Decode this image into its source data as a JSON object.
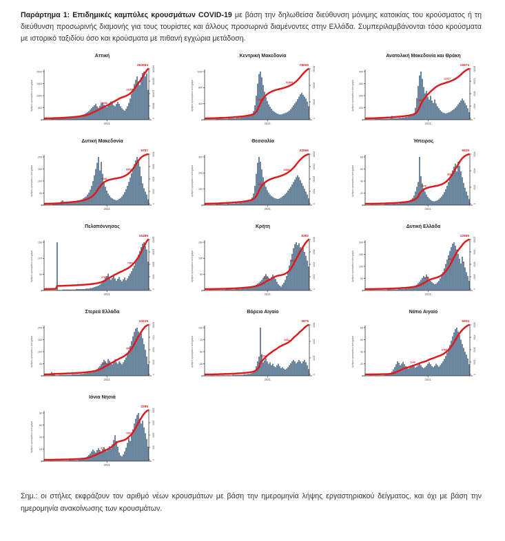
{
  "header": {
    "lead": "Παράρτημα 1:  Επιδημικές καμπύλες κρουσμάτων COVID-19",
    "rest": " με βάση την δηλωθείσα διεύθυνση μόνιμης κατοικίας του κρούσματος ή τη διεύθυνση προσωρινής διαμονής για τους τουρίστες και άλλους προσωρινά διαμένοντες στην Ελλάδα. Συμπεριλαμβάνονται τόσο κρούσματα με ιστορικό ταξιδίου όσο και κρούσματα με πιθανή εγχώρια μετάδοση."
  },
  "note": {
    "lead": "Σημ.:",
    "rest": " οι στήλες εκφράζουν τον αριθμό νέων κρουσμάτων με βάση την ημερομηνία λήψης εργαστηριακού δείγματος, και όχι με βάση την ημερομηνία ανακοίνωσης των κρουσμάτων."
  },
  "axis": {
    "ylabel": "Αριθμός κρουσμάτων ανά ημέρα",
    "x_tick": "2021"
  },
  "colors": {
    "bar": "#4d6d8b",
    "line": "#dd1a1c",
    "axis": "#333333",
    "tick_text": "#555555"
  },
  "chart_data": [
    {
      "type": "bar+cumulative-line",
      "title": "Αττική",
      "total": "263084",
      "left_ticks": [
        "0",
        "500",
        "1000",
        "1500",
        "2000"
      ],
      "right_ticks": [
        "0",
        "60000",
        "120000",
        "180000",
        "240000"
      ],
      "milestones": [
        0.56,
        0.82
      ],
      "bars": [
        1,
        1,
        1,
        1,
        1,
        2,
        2,
        2,
        2,
        2,
        2,
        3,
        3,
        3,
        3,
        3,
        4,
        4,
        4,
        5,
        5,
        5,
        6,
        6,
        7,
        8,
        9,
        10,
        11,
        12,
        14,
        16,
        18,
        21,
        24,
        27,
        30,
        33,
        28,
        25,
        29,
        33,
        36,
        31,
        28,
        26,
        30,
        35,
        38,
        34,
        30,
        28,
        33,
        37,
        33,
        28,
        24,
        21,
        19,
        23,
        28,
        35,
        44,
        54,
        64,
        74,
        83,
        90,
        80,
        72,
        88,
        97,
        100,
        90,
        96,
        62
      ]
    },
    {
      "type": "bar+cumulative-line",
      "title": "Κεντρική Μακεδονία",
      "total": "78655",
      "left_ticks": [
        "0",
        "400",
        "800",
        "1200"
      ],
      "right_ticks": [
        "0",
        "20000",
        "40000",
        "60000"
      ],
      "milestones": [
        0.53,
        0.8
      ],
      "bars": [
        1,
        1,
        1,
        1,
        1,
        1,
        1,
        1,
        2,
        2,
        2,
        2,
        2,
        2,
        2,
        2,
        2,
        3,
        3,
        3,
        3,
        3,
        3,
        4,
        4,
        4,
        5,
        5,
        6,
        6,
        7,
        8,
        9,
        10,
        12,
        18,
        30,
        50,
        75,
        95,
        100,
        88,
        72,
        58,
        47,
        39,
        32,
        27,
        23,
        19,
        17,
        15,
        13,
        12,
        11,
        11,
        12,
        13,
        14,
        15,
        17,
        19,
        22,
        26,
        30,
        34,
        38,
        43,
        48,
        53,
        56,
        52,
        48,
        44,
        38,
        28
      ]
    },
    {
      "type": "bar+cumulative-line",
      "title": "Ανατολική Μακεδονία και Θράκη",
      "total": "16973",
      "left_ticks": [
        "0",
        "100",
        "200",
        "300",
        "400"
      ],
      "right_ticks": [
        "0",
        "4000",
        "8000",
        "12000",
        "16000"
      ],
      "milestones": [
        0.53,
        0.78
      ],
      "bars": [
        1,
        1,
        1,
        1,
        1,
        1,
        1,
        2,
        2,
        2,
        2,
        2,
        2,
        2,
        2,
        2,
        2,
        2,
        3,
        8,
        3,
        3,
        3,
        3,
        4,
        4,
        4,
        5,
        5,
        6,
        6,
        7,
        8,
        9,
        10,
        14,
        25,
        45,
        70,
        92,
        100,
        85,
        68,
        55,
        60,
        48,
        42,
        50,
        40,
        35,
        42,
        34,
        28,
        24,
        20,
        17,
        15,
        14,
        13,
        14,
        15,
        16,
        18,
        20,
        22,
        25,
        28,
        32,
        36,
        40,
        44,
        40,
        35,
        30,
        24,
        16
      ]
    },
    {
      "type": "bar+cumulative-line",
      "title": "Δυτική Μακεδονία",
      "total": "9757",
      "left_ticks": [
        "0",
        "50",
        "100",
        "150",
        "200"
      ],
      "right_ticks": [
        "0",
        "2000",
        "4000",
        "6000",
        "8000"
      ],
      "milestones": [
        0.56,
        0.8
      ],
      "bars": [
        1,
        1,
        1,
        1,
        1,
        1,
        2,
        2,
        2,
        3,
        3,
        4,
        8,
        10,
        6,
        4,
        4,
        5,
        5,
        6,
        6,
        7,
        7,
        8,
        9,
        10,
        11,
        12,
        14,
        16,
        18,
        22,
        26,
        32,
        40,
        50,
        62,
        75,
        88,
        100,
        72,
        90,
        65,
        48,
        38,
        30,
        24,
        20,
        16,
        14,
        12,
        11,
        10,
        11,
        13,
        15,
        18,
        22,
        27,
        33,
        40,
        48,
        57,
        66,
        76,
        85,
        93,
        100,
        92,
        80,
        60,
        45,
        35,
        28,
        22,
        12
      ]
    },
    {
      "type": "bar+cumulative-line",
      "title": "Θεσσαλία",
      "total": "22566",
      "left_ticks": [
        "0",
        "100",
        "200",
        "300"
      ],
      "right_ticks": [
        "0",
        "5000",
        "10000",
        "15000",
        "20000"
      ],
      "milestones": [
        0.52,
        0.78
      ],
      "bars": [
        1,
        1,
        1,
        1,
        1,
        1,
        1,
        1,
        2,
        2,
        2,
        4,
        2,
        2,
        2,
        2,
        3,
        3,
        3,
        3,
        3,
        3,
        4,
        4,
        4,
        5,
        5,
        5,
        6,
        7,
        8,
        9,
        10,
        12,
        16,
        24,
        40,
        65,
        88,
        100,
        90,
        74,
        58,
        46,
        38,
        31,
        26,
        22,
        19,
        17,
        15,
        14,
        13,
        13,
        14,
        16,
        18,
        20,
        23,
        26,
        30,
        34,
        38,
        43,
        48,
        53,
        58,
        62,
        58,
        52,
        46,
        40,
        34,
        28,
        22,
        14
      ]
    },
    {
      "type": "bar+cumulative-line",
      "title": "Ήπειρος",
      "total": "6929",
      "left_ticks": [
        "0",
        "20",
        "40",
        "60",
        "80"
      ],
      "right_ticks": [
        "0",
        "2000",
        "4000",
        "6000"
      ],
      "milestones": [
        0.55,
        0.8
      ],
      "bars": [
        0,
        0,
        0,
        0,
        1,
        1,
        1,
        1,
        1,
        1,
        1,
        1,
        1,
        1,
        2,
        2,
        2,
        2,
        2,
        2,
        3,
        3,
        3,
        3,
        3,
        4,
        4,
        5,
        5,
        6,
        7,
        8,
        10,
        12,
        15,
        20,
        28,
        38,
        48,
        100,
        60,
        45,
        35,
        28,
        22,
        17,
        14,
        11,
        9,
        8,
        8,
        9,
        10,
        12,
        15,
        18,
        22,
        27,
        33,
        40,
        48,
        56,
        64,
        72,
        80,
        86,
        70,
        90,
        82,
        70,
        58,
        46,
        36,
        28,
        20,
        12
      ]
    },
    {
      "type": "bar+cumulative-line",
      "title": "Πελοπόννησος",
      "total": "16489",
      "left_ticks": [
        "0",
        "50",
        "100",
        "150"
      ],
      "right_ticks": [
        "0",
        "4000",
        "8000",
        "12000",
        "16000"
      ],
      "milestones": [
        0.56,
        0.82
      ],
      "bars": [
        1,
        1,
        1,
        1,
        1,
        1,
        1,
        1,
        1,
        100,
        1,
        1,
        1,
        2,
        2,
        2,
        2,
        2,
        2,
        2,
        2,
        2,
        2,
        3,
        3,
        3,
        3,
        3,
        3,
        3,
        4,
        4,
        4,
        5,
        5,
        6,
        7,
        8,
        9,
        10,
        12,
        15,
        18,
        22,
        26,
        30,
        35,
        28,
        22,
        26,
        31,
        25,
        20,
        24,
        28,
        22,
        19,
        23,
        27,
        21,
        25,
        30,
        35,
        40,
        46,
        52,
        59,
        66,
        74,
        82,
        90,
        97,
        100,
        92,
        85,
        60
      ]
    },
    {
      "type": "bar+cumulative-line",
      "title": "Κρήτη",
      "total": "8382",
      "left_ticks": [
        "0",
        "50",
        "100",
        "150"
      ],
      "right_ticks": [
        "0",
        "2000",
        "4000",
        "6000",
        "8000"
      ],
      "milestones": [
        0.58,
        0.84
      ],
      "bars": [
        0,
        0,
        0,
        1,
        1,
        1,
        1,
        1,
        1,
        1,
        1,
        1,
        1,
        1,
        1,
        2,
        2,
        2,
        2,
        2,
        2,
        2,
        3,
        3,
        3,
        3,
        3,
        4,
        4,
        4,
        5,
        5,
        6,
        7,
        8,
        9,
        10,
        12,
        14,
        16,
        19,
        22,
        26,
        30,
        34,
        30,
        26,
        22,
        28,
        33,
        28,
        24,
        18,
        13,
        10,
        8,
        12,
        16,
        22,
        30,
        40,
        52,
        64,
        76,
        88,
        96,
        100,
        94,
        98,
        90,
        84,
        88,
        80,
        72,
        62,
        50
      ]
    },
    {
      "type": "bar+cumulative-line",
      "title": "Δυτική Ελλάδα",
      "total": "12669",
      "left_ticks": [
        "0",
        "50",
        "100",
        "150",
        "200"
      ],
      "right_ticks": [
        "0",
        "3000",
        "6000",
        "9000",
        "12000"
      ],
      "milestones": [
        0.58,
        0.82
      ],
      "bars": [
        0,
        0,
        0,
        1,
        1,
        1,
        1,
        1,
        1,
        1,
        1,
        1,
        1,
        1,
        1,
        1,
        2,
        2,
        2,
        2,
        2,
        2,
        2,
        2,
        3,
        3,
        3,
        3,
        3,
        4,
        4,
        5,
        5,
        6,
        7,
        8,
        10,
        12,
        15,
        18,
        22,
        26,
        30,
        27,
        33,
        29,
        24,
        20,
        17,
        15,
        13,
        14,
        17,
        20,
        25,
        31,
        38,
        46,
        55,
        64,
        73,
        82,
        90,
        97,
        100,
        93,
        85,
        76,
        66,
        56,
        70,
        60,
        48,
        38,
        30,
        20
      ]
    },
    {
      "type": "bar+cumulative-line",
      "title": "Στερεά Ελλάδα",
      "total": "10226",
      "left_ticks": [
        "0",
        "50",
        "100",
        "150",
        "200"
      ],
      "right_ticks": [
        "0",
        "2500",
        "5000",
        "7500",
        "10000"
      ],
      "milestones": [
        0.56,
        0.8
      ],
      "bars": [
        1,
        1,
        1,
        1,
        1,
        8,
        2,
        6,
        1,
        1,
        1,
        2,
        2,
        2,
        2,
        2,
        2,
        2,
        2,
        2,
        3,
        3,
        3,
        3,
        3,
        3,
        4,
        4,
        4,
        5,
        5,
        6,
        6,
        7,
        8,
        9,
        10,
        12,
        14,
        17,
        20,
        24,
        28,
        33,
        30,
        26,
        35,
        31,
        27,
        24,
        29,
        34,
        28,
        25,
        30,
        27,
        24,
        28,
        33,
        38,
        45,
        53,
        62,
        72,
        82,
        91,
        98,
        100,
        92,
        84,
        90,
        78,
        66,
        54,
        40,
        24
      ]
    },
    {
      "type": "bar+cumulative-line",
      "title": "Βόρειο Αιγαίο",
      "total": "3879",
      "left_ticks": [
        "0",
        "25",
        "50",
        "75",
        "100"
      ],
      "right_ticks": [
        "0",
        "1000",
        "2000",
        "3000"
      ],
      "milestones": [
        0.55,
        0.78
      ],
      "bars": [
        0,
        0,
        0,
        0,
        0,
        1,
        1,
        1,
        1,
        1,
        1,
        1,
        1,
        1,
        1,
        1,
        1,
        1,
        1,
        1,
        2,
        2,
        2,
        2,
        2,
        2,
        2,
        2,
        3,
        3,
        3,
        4,
        4,
        5,
        6,
        8,
        12,
        20,
        30,
        40,
        100,
        45,
        28,
        32,
        36,
        30,
        25,
        28,
        22,
        25,
        20,
        18,
        22,
        25,
        20,
        16,
        18,
        15,
        13,
        15,
        18,
        22,
        26,
        30,
        33,
        30,
        26,
        29,
        33,
        30,
        26,
        30,
        33,
        28,
        22,
        14
      ]
    },
    {
      "type": "bar+cumulative-line",
      "title": "Νότιο Αιγαίο",
      "total": "6504",
      "left_ticks": [
        "0",
        "20",
        "40",
        "60",
        "80"
      ],
      "right_ticks": [
        "0",
        "1500",
        "3000",
        "4500",
        "6000"
      ],
      "milestones": [
        0.45,
        0.75
      ],
      "bars": [
        0,
        0,
        0,
        1,
        1,
        1,
        1,
        1,
        1,
        1,
        1,
        1,
        1,
        1,
        2,
        2,
        3,
        4,
        6,
        9,
        13,
        18,
        24,
        30,
        27,
        22,
        25,
        29,
        24,
        20,
        17,
        15,
        17,
        20,
        23,
        20,
        17,
        19,
        22,
        26,
        22,
        18,
        16,
        18,
        21,
        25,
        28,
        24,
        20,
        18,
        21,
        25,
        22,
        19,
        22,
        26,
        30,
        35,
        41,
        48,
        56,
        64,
        73,
        82,
        90,
        97,
        100,
        92,
        84,
        75,
        66,
        58,
        50,
        44,
        36,
        24
      ]
    },
    {
      "type": "bar+cumulative-line",
      "title": "Ιόνια Νησιά",
      "total": "2286",
      "left_ticks": [
        "0",
        "20",
        "40",
        "60",
        "80"
      ],
      "right_ticks": [
        "0",
        "500",
        "1000",
        "1500",
        "2000"
      ],
      "milestones": [
        0.55,
        0.8
      ],
      "bars": [
        0,
        0,
        0,
        0,
        1,
        1,
        1,
        1,
        1,
        1,
        1,
        1,
        1,
        1,
        1,
        1,
        1,
        1,
        2,
        2,
        2,
        2,
        2,
        2,
        2,
        3,
        3,
        4,
        5,
        6,
        8,
        10,
        13,
        16,
        20,
        24,
        21,
        18,
        23,
        27,
        23,
        20,
        25,
        29,
        25,
        21,
        27,
        31,
        26,
        35,
        44,
        54,
        42,
        30,
        18,
        12,
        10,
        14,
        20,
        28,
        38,
        48,
        42,
        56,
        66,
        78,
        88,
        96,
        100,
        88,
        78,
        84,
        70,
        58,
        46,
        30
      ]
    }
  ]
}
